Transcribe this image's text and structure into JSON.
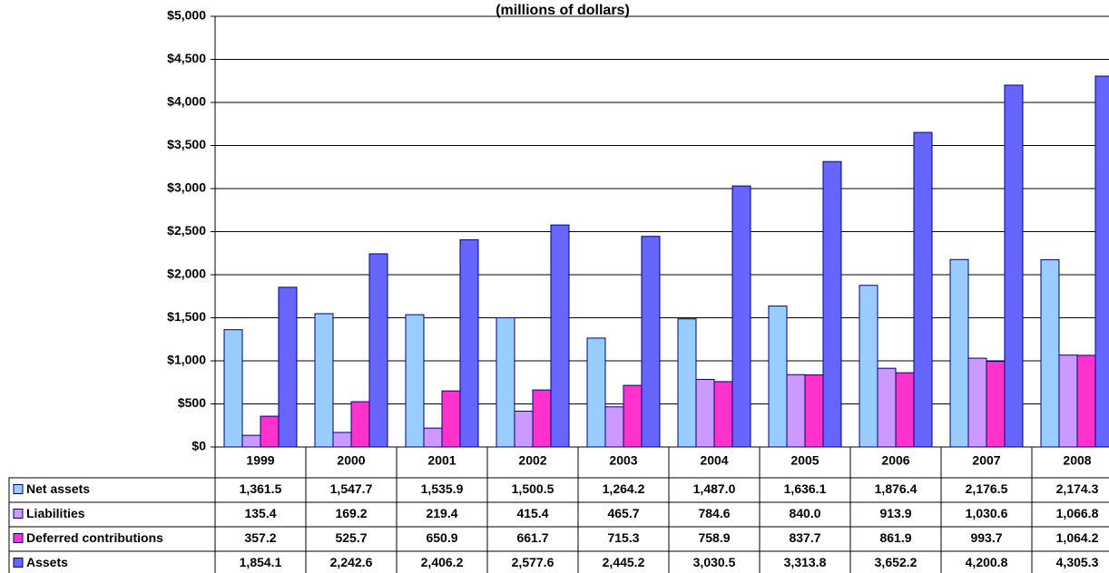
{
  "chart_data": {
    "type": "bar",
    "title": "(millions of dollars)",
    "categories": [
      "1999",
      "2000",
      "2001",
      "2002",
      "2003",
      "2004",
      "2005",
      "2006",
      "2007",
      "2008"
    ],
    "series": [
      {
        "name": "Net assets",
        "color": "#99ccff",
        "values": [
          1361.5,
          1547.7,
          1535.9,
          1500.5,
          1264.2,
          1487.0,
          1636.1,
          1876.4,
          2176.5,
          2174.3
        ],
        "value_labels": [
          "1,361.5",
          "1,547.7",
          "1,535.9",
          "1,500.5",
          "1,264.2",
          "1,487.0",
          "1,636.1",
          "1,876.4",
          "2,176.5",
          "2,174.3"
        ]
      },
      {
        "name": "Liabilities",
        "color": "#cc99ff",
        "values": [
          135.4,
          169.2,
          219.4,
          415.4,
          465.7,
          784.6,
          840.0,
          913.9,
          1030.6,
          1066.8
        ],
        "value_labels": [
          "135.4",
          "169.2",
          "219.4",
          "415.4",
          "465.7",
          "784.6",
          "840.0",
          "913.9",
          "1,030.6",
          "1,066.8"
        ]
      },
      {
        "name": "Deferred contributions",
        "color": "#ff33cc",
        "values": [
          357.2,
          525.7,
          650.9,
          661.7,
          715.3,
          758.9,
          837.7,
          861.9,
          993.7,
          1064.2
        ],
        "value_labels": [
          "357.2",
          "525.7",
          "650.9",
          "661.7",
          "715.3",
          "758.9",
          "837.7",
          "861.9",
          "993.7",
          "1,064.2"
        ]
      },
      {
        "name": "Assets",
        "color": "#6666ff",
        "values": [
          1854.1,
          2242.6,
          2406.2,
          2577.6,
          2445.2,
          3030.5,
          3313.8,
          3652.2,
          4200.8,
          4305.3
        ],
        "value_labels": [
          "1,854.1",
          "2,242.6",
          "2,406.2",
          "2,577.6",
          "2,445.2",
          "3,030.5",
          "3,313.8",
          "3,652.2",
          "4,200.8",
          "4,305.3"
        ]
      }
    ],
    "ylim": [
      0,
      5000
    ],
    "yticks": [
      {
        "value": 0,
        "label": "$0"
      },
      {
        "value": 500,
        "label": "$500"
      },
      {
        "value": 1000,
        "label": "$1,000"
      },
      {
        "value": 1500,
        "label": "$1,500"
      },
      {
        "value": 2000,
        "label": "$2,000"
      },
      {
        "value": 2500,
        "label": "$2,500"
      },
      {
        "value": 3000,
        "label": "$3,000"
      },
      {
        "value": 3500,
        "label": "$3,500"
      },
      {
        "value": 4000,
        "label": "$4,000"
      },
      {
        "value": 4500,
        "label": "$4,500"
      },
      {
        "value": 5000,
        "label": "$5,000"
      }
    ],
    "grid": true
  }
}
